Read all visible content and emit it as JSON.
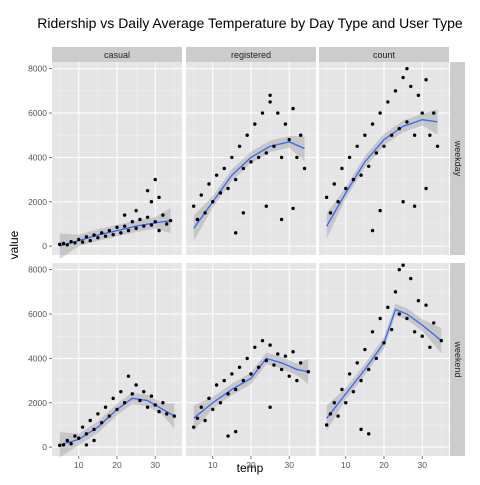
{
  "chart_data": {
    "type": "scatter",
    "title": "Ridership vs Daily Average Temperature by Day Type and User Type",
    "xlabel": "temp",
    "ylabel": "value",
    "columns": [
      "casual",
      "registered",
      "count"
    ],
    "rows": [
      "weekday",
      "weekend"
    ],
    "xlim": [
      3,
      37
    ],
    "ylim": [
      -400,
      8300
    ],
    "xticks": [
      10,
      20,
      30
    ],
    "yticks": [
      0,
      2000,
      4000,
      6000,
      8000
    ],
    "grid": true,
    "smoother_color": "#3366ff",
    "point_color": "#000000",
    "panels": [
      {
        "row": "weekday",
        "col": "casual",
        "smooth": {
          "x": [
            5,
            10,
            15,
            20,
            25,
            30,
            34
          ],
          "y": [
            0,
            250,
            500,
            700,
            900,
            1050,
            1150
          ]
        },
        "points": [
          [
            5,
            80
          ],
          [
            6,
            120
          ],
          [
            7,
            60
          ],
          [
            8,
            200
          ],
          [
            9,
            150
          ],
          [
            10,
            300
          ],
          [
            11,
            180
          ],
          [
            12,
            420
          ],
          [
            13,
            250
          ],
          [
            14,
            500
          ],
          [
            15,
            380
          ],
          [
            16,
            600
          ],
          [
            17,
            450
          ],
          [
            18,
            700
          ],
          [
            19,
            520
          ],
          [
            20,
            850
          ],
          [
            21,
            600
          ],
          [
            22,
            900
          ],
          [
            23,
            700
          ],
          [
            24,
            1100
          ],
          [
            25,
            800
          ],
          [
            26,
            1200
          ],
          [
            27,
            900
          ],
          [
            28,
            1300
          ],
          [
            29,
            950
          ],
          [
            30,
            1100
          ],
          [
            31,
            700
          ],
          [
            32,
            1400
          ],
          [
            33,
            1000
          ],
          [
            34,
            1150
          ],
          [
            28,
            2500
          ],
          [
            30,
            3000
          ],
          [
            31,
            2200
          ],
          [
            29,
            2000
          ],
          [
            25,
            1600
          ],
          [
            22,
            1400
          ]
        ]
      },
      {
        "row": "weekday",
        "col": "registered",
        "smooth": {
          "x": [
            5,
            10,
            15,
            20,
            25,
            30,
            34
          ],
          "y": [
            800,
            2000,
            3200,
            4000,
            4500,
            4700,
            4400
          ]
        },
        "points": [
          [
            5,
            1800
          ],
          [
            6,
            1200
          ],
          [
            7,
            2300
          ],
          [
            8,
            1500
          ],
          [
            9,
            2800
          ],
          [
            10,
            2000
          ],
          [
            11,
            3200
          ],
          [
            12,
            2400
          ],
          [
            13,
            3500
          ],
          [
            14,
            2600
          ],
          [
            15,
            4000
          ],
          [
            16,
            3000
          ],
          [
            17,
            4500
          ],
          [
            18,
            3500
          ],
          [
            19,
            5000
          ],
          [
            20,
            3800
          ],
          [
            21,
            5500
          ],
          [
            22,
            4000
          ],
          [
            23,
            6000
          ],
          [
            24,
            4200
          ],
          [
            25,
            6500
          ],
          [
            26,
            4500
          ],
          [
            27,
            6000
          ],
          [
            28,
            4000
          ],
          [
            29,
            5500
          ],
          [
            30,
            4800
          ],
          [
            31,
            6200
          ],
          [
            32,
            4000
          ],
          [
            33,
            5000
          ],
          [
            34,
            3500
          ],
          [
            16,
            600
          ],
          [
            18,
            1500
          ],
          [
            24,
            1800
          ],
          [
            28,
            1200
          ],
          [
            31,
            1700
          ],
          [
            25,
            6800
          ]
        ]
      },
      {
        "row": "weekday",
        "col": "count",
        "smooth": {
          "x": [
            5,
            10,
            15,
            20,
            25,
            30,
            34
          ],
          "y": [
            900,
            2400,
            3800,
            4800,
            5400,
            5700,
            5600
          ]
        },
        "points": [
          [
            5,
            2200
          ],
          [
            6,
            1500
          ],
          [
            7,
            2800
          ],
          [
            8,
            2000
          ],
          [
            9,
            3500
          ],
          [
            10,
            2600
          ],
          [
            11,
            4000
          ],
          [
            12,
            3000
          ],
          [
            13,
            4500
          ],
          [
            14,
            3200
          ],
          [
            15,
            5000
          ],
          [
            16,
            3600
          ],
          [
            17,
            5500
          ],
          [
            18,
            4200
          ],
          [
            19,
            6000
          ],
          [
            20,
            4500
          ],
          [
            21,
            6500
          ],
          [
            22,
            5000
          ],
          [
            23,
            7000
          ],
          [
            24,
            5300
          ],
          [
            25,
            7600
          ],
          [
            26,
            5600
          ],
          [
            27,
            7200
          ],
          [
            28,
            5000
          ],
          [
            29,
            6800
          ],
          [
            30,
            6000
          ],
          [
            31,
            7500
          ],
          [
            32,
            5000
          ],
          [
            33,
            6000
          ],
          [
            34,
            4500
          ],
          [
            17,
            700
          ],
          [
            19,
            1600
          ],
          [
            25,
            2000
          ],
          [
            28,
            1800
          ],
          [
            31,
            2600
          ],
          [
            26,
            8000
          ]
        ]
      },
      {
        "row": "weekend",
        "col": "casual",
        "smooth": {
          "x": [
            5,
            10,
            15,
            20,
            24,
            28,
            32,
            35
          ],
          "y": [
            100,
            350,
            900,
            1700,
            2200,
            2100,
            1700,
            1400
          ]
        },
        "points": [
          [
            5,
            80
          ],
          [
            6,
            100
          ],
          [
            7,
            300
          ],
          [
            8,
            150
          ],
          [
            9,
            500
          ],
          [
            10,
            400
          ],
          [
            11,
            900
          ],
          [
            12,
            600
          ],
          [
            13,
            1200
          ],
          [
            14,
            800
          ],
          [
            15,
            1500
          ],
          [
            16,
            1100
          ],
          [
            17,
            1800
          ],
          [
            18,
            1400
          ],
          [
            19,
            2200
          ],
          [
            20,
            1700
          ],
          [
            21,
            2500
          ],
          [
            22,
            2000
          ],
          [
            23,
            3200
          ],
          [
            24,
            2400
          ],
          [
            25,
            2800
          ],
          [
            26,
            2100
          ],
          [
            27,
            2500
          ],
          [
            28,
            1800
          ],
          [
            29,
            2300
          ],
          [
            30,
            1900
          ],
          [
            31,
            1600
          ],
          [
            32,
            2000
          ],
          [
            33,
            1500
          ],
          [
            35,
            1400
          ],
          [
            12,
            100
          ],
          [
            14,
            300
          ]
        ]
      },
      {
        "row": "weekend",
        "col": "registered",
        "smooth": {
          "x": [
            5,
            10,
            15,
            20,
            24,
            28,
            32,
            35
          ],
          "y": [
            1300,
            2000,
            2600,
            3100,
            4000,
            3800,
            3500,
            3400
          ]
        },
        "points": [
          [
            5,
            900
          ],
          [
            6,
            1300
          ],
          [
            7,
            1800
          ],
          [
            8,
            1200
          ],
          [
            9,
            2200
          ],
          [
            10,
            1700
          ],
          [
            11,
            2800
          ],
          [
            12,
            2000
          ],
          [
            13,
            3000
          ],
          [
            14,
            2400
          ],
          [
            15,
            3300
          ],
          [
            16,
            2600
          ],
          [
            17,
            3600
          ],
          [
            18,
            3000
          ],
          [
            19,
            4000
          ],
          [
            20,
            3300
          ],
          [
            21,
            4500
          ],
          [
            22,
            3600
          ],
          [
            23,
            4800
          ],
          [
            24,
            3900
          ],
          [
            25,
            4600
          ],
          [
            26,
            3700
          ],
          [
            27,
            4200
          ],
          [
            28,
            3500
          ],
          [
            29,
            4100
          ],
          [
            30,
            3200
          ],
          [
            31,
            4300
          ],
          [
            32,
            3000
          ],
          [
            33,
            3800
          ],
          [
            35,
            3400
          ],
          [
            14,
            500
          ],
          [
            16,
            700
          ],
          [
            25,
            1800
          ]
        ]
      },
      {
        "row": "weekend",
        "col": "count",
        "smooth": {
          "x": [
            5,
            10,
            15,
            20,
            23,
            26,
            30,
            35
          ],
          "y": [
            1300,
            2400,
            3500,
            4700,
            6200,
            6000,
            5500,
            4800
          ]
        },
        "points": [
          [
            5,
            1000
          ],
          [
            6,
            1500
          ],
          [
            7,
            2000
          ],
          [
            8,
            1400
          ],
          [
            9,
            2600
          ],
          [
            10,
            2000
          ],
          [
            11,
            3300
          ],
          [
            12,
            2500
          ],
          [
            13,
            3800
          ],
          [
            14,
            3000
          ],
          [
            15,
            4400
          ],
          [
            16,
            3500
          ],
          [
            17,
            5200
          ],
          [
            18,
            4000
          ],
          [
            19,
            5800
          ],
          [
            20,
            4700
          ],
          [
            21,
            6300
          ],
          [
            22,
            5300
          ],
          [
            23,
            7000
          ],
          [
            24,
            6000
          ],
          [
            25,
            8200
          ],
          [
            26,
            5800
          ],
          [
            27,
            7600
          ],
          [
            28,
            5200
          ],
          [
            29,
            6600
          ],
          [
            30,
            5000
          ],
          [
            31,
            6400
          ],
          [
            32,
            4500
          ],
          [
            33,
            5600
          ],
          [
            35,
            4800
          ],
          [
            14,
            800
          ],
          [
            16,
            600
          ],
          [
            24,
            8000
          ]
        ]
      }
    ]
  }
}
